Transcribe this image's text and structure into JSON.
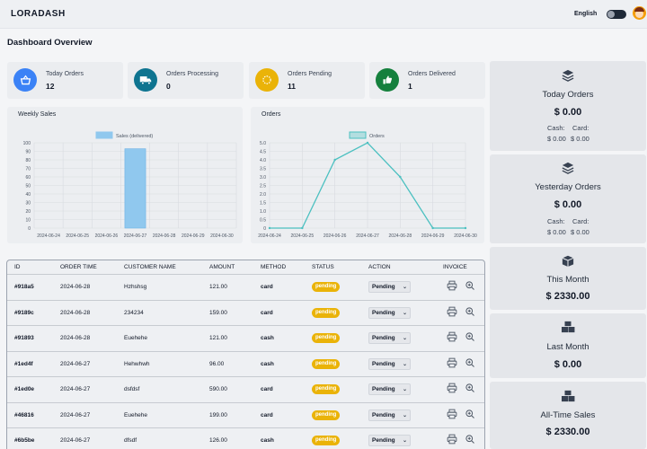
{
  "header": {
    "logo": "LORADASH",
    "language": "English"
  },
  "page_title": "Dashboard Overview",
  "stats": [
    {
      "label": "Today Orders",
      "value": "12",
      "color": "#3b82f6",
      "icon": "basket-icon"
    },
    {
      "label": "Orders Processing",
      "value": "0",
      "color": "#0e7490",
      "icon": "truck-icon"
    },
    {
      "label": "Orders Pending",
      "value": "11",
      "color": "#eab308",
      "icon": "spinner-icon"
    },
    {
      "label": "Orders Delivered",
      "value": "1",
      "color": "#15803d",
      "icon": "thumbs-up-icon"
    }
  ],
  "charts": {
    "weekly_sales_title": "Weekly Sales",
    "orders_title": "Orders"
  },
  "chart_data": [
    {
      "type": "bar",
      "title": "Weekly Sales",
      "legend": "Sales (delivered)",
      "categories": [
        "2024-06-24",
        "2024-06-25",
        "2024-06-26",
        "2024-06-27",
        "2024-06-28",
        "2024-06-29",
        "2024-06-30"
      ],
      "values": [
        0,
        0,
        0,
        93,
        0,
        0,
        0
      ],
      "ylim": [
        0,
        100
      ],
      "yticks": [
        0,
        10,
        20,
        30,
        40,
        50,
        60,
        70,
        80,
        90,
        100
      ],
      "color": "#90c8ee",
      "grid": true,
      "legend_position": "top"
    },
    {
      "type": "line",
      "title": "Orders",
      "legend": "Orders",
      "categories": [
        "2024-06-24",
        "2024-06-25",
        "2024-06-26",
        "2024-06-27",
        "2024-06-28",
        "2024-06-29",
        "2024-06-30"
      ],
      "values": [
        0,
        0,
        4,
        5,
        3,
        0,
        0
      ],
      "ylim": [
        0,
        5
      ],
      "yticks": [
        "0",
        "0.5",
        "1.0",
        "1.5",
        "2.0",
        "2.5",
        "3.0",
        "3.5",
        "4.0",
        "4.5",
        "5.0"
      ],
      "color": "#4bc0c0",
      "grid": true,
      "legend_position": "top"
    }
  ],
  "summary": [
    {
      "title": "Today Orders",
      "amount": "$ 0.00",
      "cash_label": "Cash:",
      "cash": "$ 0.00",
      "card_label": "Card:",
      "card": "$ 0.00",
      "icon": "layers-icon"
    },
    {
      "title": "Yesterday Orders",
      "amount": "$ 0.00",
      "cash_label": "Cash:",
      "cash": "$ 0.00",
      "card_label": "Card:",
      "card": "$ 0.00",
      "icon": "layers-icon"
    },
    {
      "title": "This Month",
      "amount": "$ 2330.00",
      "icon": "box-icon"
    },
    {
      "title": "Last Month",
      "amount": "$ 0.00",
      "icon": "boxes-icon"
    },
    {
      "title": "All-Time Sales",
      "amount": "$ 2330.00",
      "icon": "boxes-icon"
    }
  ],
  "table": {
    "headers": [
      "ID",
      "ORDER TIME",
      "CUSTOMER NAME",
      "AMOUNT",
      "METHOD",
      "STATUS",
      "ACTION",
      "INVOICE"
    ],
    "rows": [
      {
        "id": "#918a5",
        "time": "2024-06-28",
        "customer": "Hzhshsg",
        "amount": "121.00",
        "method": "card",
        "status": "pending",
        "action": "Pending"
      },
      {
        "id": "#9189c",
        "time": "2024-06-28",
        "customer": "234234",
        "amount": "159.00",
        "method": "card",
        "status": "pending",
        "action": "Pending"
      },
      {
        "id": "#91893",
        "time": "2024-06-28",
        "customer": "Euehehe",
        "amount": "121.00",
        "method": "cash",
        "status": "pending",
        "action": "Pending"
      },
      {
        "id": "#1ed4f",
        "time": "2024-06-27",
        "customer": "Hehwhwh",
        "amount": "96.00",
        "method": "cash",
        "status": "pending",
        "action": "Pending"
      },
      {
        "id": "#1ed0e",
        "time": "2024-06-27",
        "customer": "dsfdsf",
        "amount": "590.00",
        "method": "card",
        "status": "pending",
        "action": "Pending"
      },
      {
        "id": "#46816",
        "time": "2024-06-27",
        "customer": "Euehehe",
        "amount": "199.00",
        "method": "card",
        "status": "pending",
        "action": "Pending"
      },
      {
        "id": "#6b5be",
        "time": "2024-06-27",
        "customer": "dfsdf",
        "amount": "126.00",
        "method": "cash",
        "status": "pending",
        "action": "Pending"
      }
    ]
  }
}
